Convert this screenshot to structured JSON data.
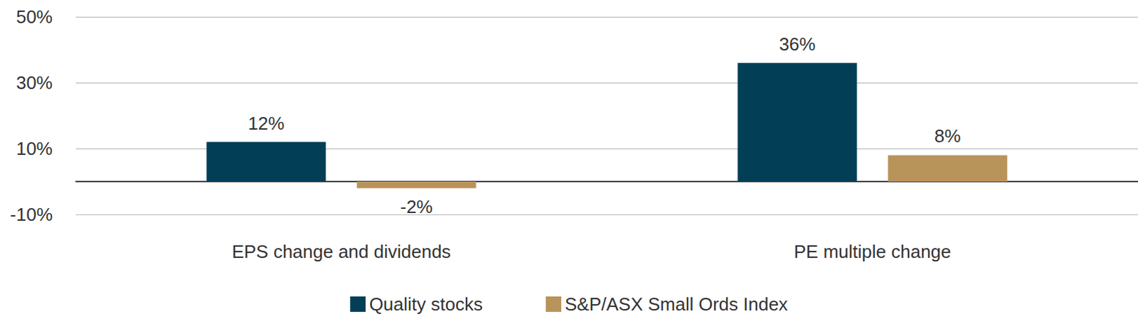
{
  "chart_data": {
    "type": "bar",
    "categories": [
      "EPS change and dividends",
      "PE multiple change"
    ],
    "series": [
      {
        "name": "Quality stocks",
        "color": "#023f57",
        "values": [
          12,
          36
        ],
        "value_labels": [
          "12%",
          "36%"
        ]
      },
      {
        "name": "S&P/ASX Small Ords Index",
        "color": "#b8935a",
        "values": [
          -2,
          8
        ],
        "value_labels": [
          "-2%",
          "8%"
        ]
      }
    ],
    "ylim": [
      -10,
      50
    ],
    "yticks": [
      {
        "value": -10,
        "label": "-10%"
      },
      {
        "value": 10,
        "label": "10%"
      },
      {
        "value": 30,
        "label": "30%"
      },
      {
        "value": 50,
        "label": "50%"
      }
    ],
    "grid": true,
    "legend": "bottom",
    "data_labels": true
  }
}
